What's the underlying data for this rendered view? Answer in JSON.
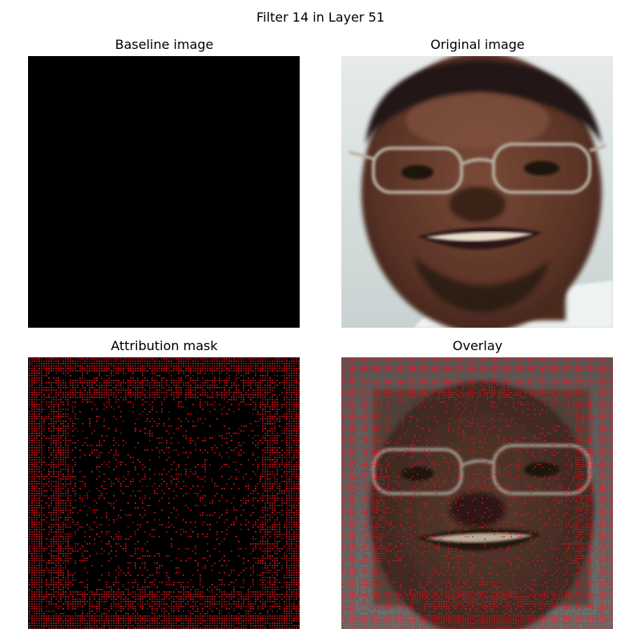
{
  "figure": {
    "suptitle": "Filter 14 in Layer 51",
    "panels": {
      "baseline": {
        "title": "Baseline image"
      },
      "original": {
        "title": "Original image"
      },
      "mask": {
        "title": "Attribution mask"
      },
      "overlay": {
        "title": "Overlay"
      }
    }
  },
  "colors": {
    "baseline": "#000000",
    "mask_highlight": "#e0141c",
    "mask_background": "#000000"
  }
}
